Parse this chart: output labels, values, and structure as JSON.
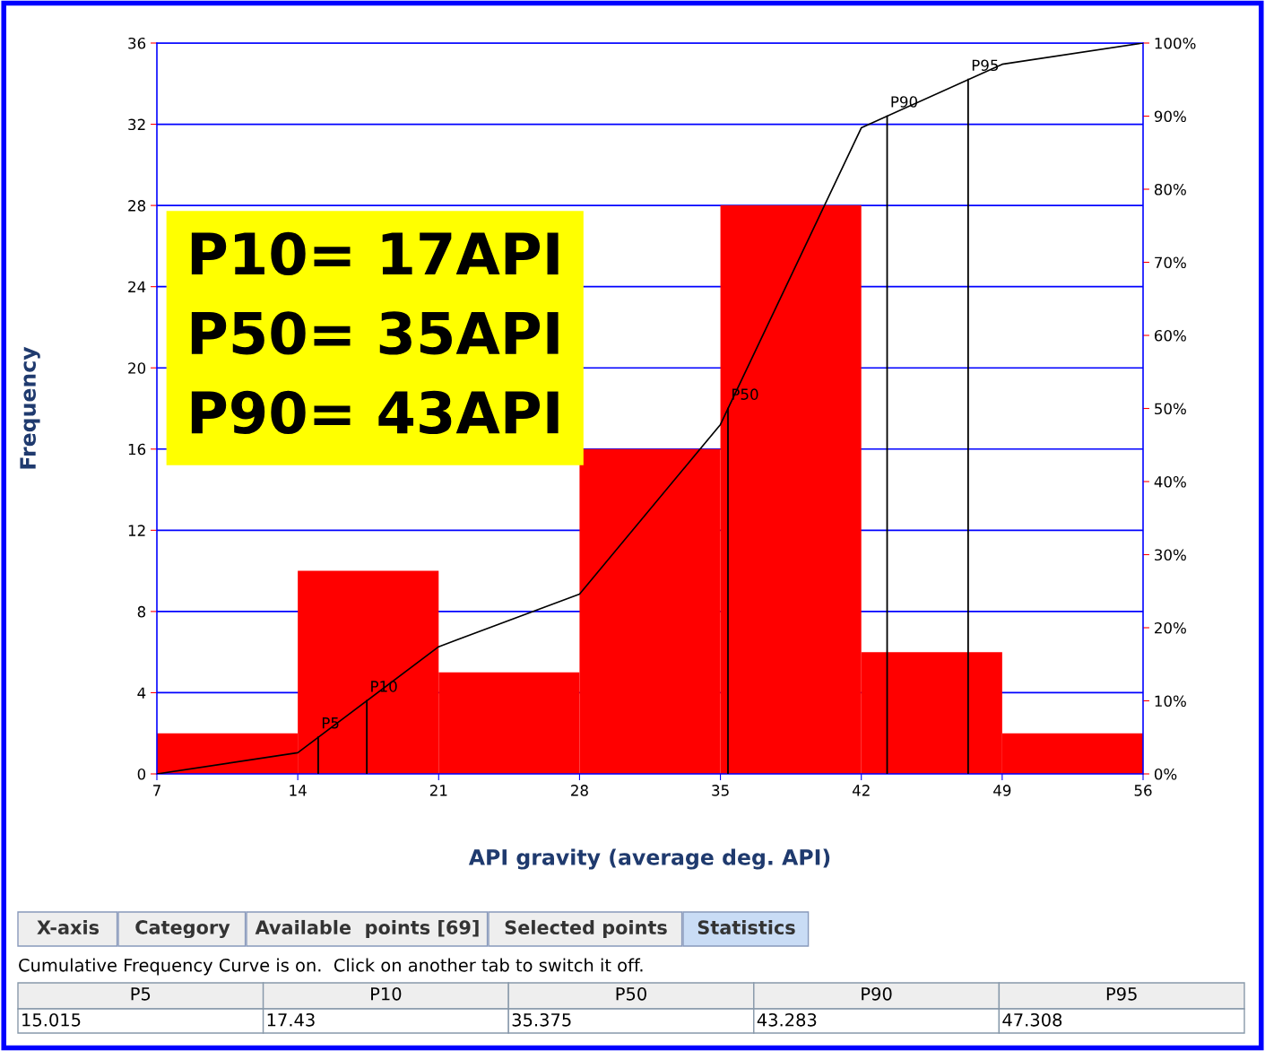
{
  "chart_data": {
    "type": "histogram",
    "xlabel": "API gravity (average deg. API)",
    "ylabel": "Frequency",
    "bins": [
      7,
      14,
      21,
      28,
      35,
      42,
      49,
      56
    ],
    "series": [
      {
        "color": "#ff0000",
        "values": [
          2,
          10,
          5,
          16,
          28,
          6,
          2
        ]
      },
      {
        "type": "line",
        "axis": "y2",
        "color": "#000000",
        "x": [
          7,
          14,
          21,
          28,
          35,
          42,
          49,
          56
        ],
        "values": [
          0,
          2.9,
          17.4,
          24.6,
          47.8,
          88.4,
          97.1,
          100
        ]
      }
    ],
    "xlim": [
      7,
      56
    ],
    "xticks": [
      7,
      14,
      21,
      28,
      35,
      42,
      49,
      56
    ],
    "ylim": [
      0,
      36
    ],
    "yticks": [
      0,
      4,
      8,
      12,
      16,
      20,
      24,
      28,
      32,
      36
    ],
    "y2lim": [
      0,
      100
    ],
    "y2ticks": [
      {
        "value": 0,
        "label": "0%"
      },
      {
        "value": 10,
        "label": "10%"
      },
      {
        "value": 20,
        "label": "20%"
      },
      {
        "value": 30,
        "label": "30%"
      },
      {
        "value": 40,
        "label": "40%"
      },
      {
        "value": 50,
        "label": "50%"
      },
      {
        "value": 60,
        "label": "60%"
      },
      {
        "value": 70,
        "label": "70%"
      },
      {
        "value": 80,
        "label": "80%"
      },
      {
        "value": 90,
        "label": "90%"
      },
      {
        "value": 100,
        "label": "100%"
      }
    ],
    "grid": "y",
    "legend": false,
    "ref_lines": [
      {
        "axis": "x",
        "value": 15.015,
        "label": "P5",
        "color": "#000000"
      },
      {
        "axis": "x",
        "value": 17.43,
        "label": "P10",
        "color": "#000000"
      },
      {
        "axis": "x",
        "value": 35.375,
        "label": "P50",
        "color": "#000000"
      },
      {
        "axis": "x",
        "value": 43.283,
        "label": "P90",
        "color": "#000000"
      },
      {
        "axis": "x",
        "value": 47.308,
        "label": "P95",
        "color": "#000000"
      }
    ],
    "annotations": [
      "P10= 17API\nP50= 35API\nP90= 43API",
      "X-axis",
      "Category",
      "Available  points [69]",
      "Selected points",
      "Statistics",
      "Cumulative Frequency Curve is on.  Click on another tab to switch it off.",
      "15.015",
      "17.43",
      "35.375",
      "43.283",
      "47.308"
    ]
  }
}
